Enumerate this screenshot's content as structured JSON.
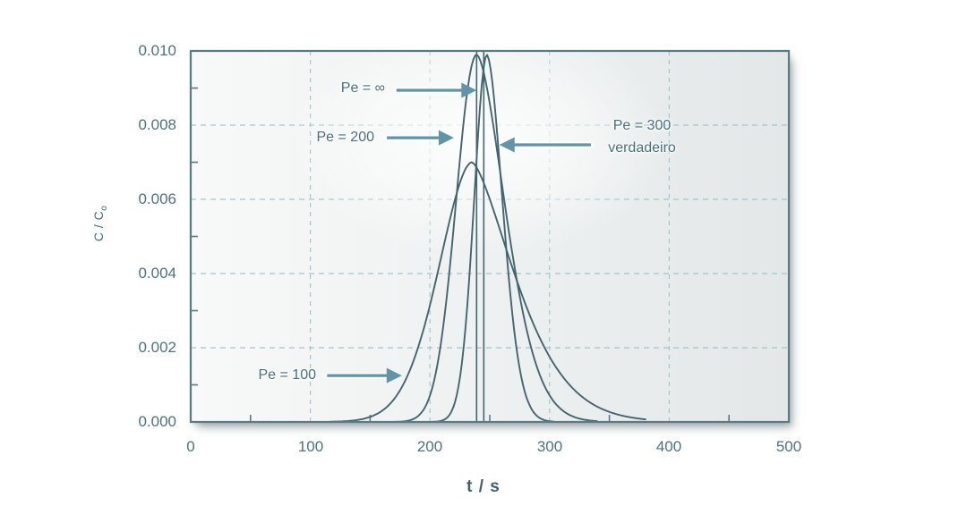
{
  "figure": {
    "x_axis_title": "t / s",
    "y_axis_title_main": "C / C",
    "y_axis_title_sub": "o"
  },
  "chart_data": {
    "type": "line",
    "title": "",
    "xlabel": "t / s",
    "ylabel": "C / Co",
    "xlim": [
      0,
      500
    ],
    "ylim": [
      0.0,
      0.01
    ],
    "grid": "dashed major gridlines, minor inward ticks",
    "legend_position": "none (arrow annotations inside plot)",
    "x_tick_labels": [
      "0",
      "100",
      "200",
      "300",
      "400",
      "500"
    ],
    "y_tick_labels": [
      "0.000",
      "0.002",
      "0.004",
      "0.006",
      "0.008",
      "0.010"
    ],
    "x_ticks_major": [
      0,
      100,
      200,
      300,
      400,
      500
    ],
    "x_ticks_minor": [
      50,
      150,
      250,
      350,
      450
    ],
    "y_ticks_major": [
      0.0,
      0.002,
      0.004,
      0.006,
      0.008,
      0.01
    ],
    "y_ticks_minor": [
      0.001,
      0.003,
      0.005,
      0.007,
      0.009
    ],
    "series": [
      {
        "name": "Pe = 100",
        "shape": "skewed-peak",
        "mode": 235,
        "peak": 0.007,
        "sigma_left": 27,
        "sigma_right": 33,
        "power_left": 1.8,
        "power_right": 1.5,
        "samples": [
          [
            140,
            0.0001
          ],
          [
            160,
            0.0003
          ],
          [
            180,
            0.0012
          ],
          [
            200,
            0.0032
          ],
          [
            220,
            0.0059
          ],
          [
            235,
            0.007
          ],
          [
            250,
            0.006
          ],
          [
            270,
            0.0041
          ],
          [
            290,
            0.0024
          ],
          [
            310,
            0.0013
          ],
          [
            330,
            0.0006
          ],
          [
            350,
            0.0003
          ],
          [
            360,
            0.0001
          ]
        ]
      },
      {
        "name": "Pe = 200",
        "shape": "skewed-peak",
        "mode": 239,
        "peak": 0.0099,
        "sigma_left": 17,
        "sigma_right": 23,
        "power_left": 2.0,
        "power_right": 1.7,
        "samples": [
          [
            180,
            0.0001
          ],
          [
            200,
            0.0007
          ],
          [
            220,
            0.0053
          ],
          [
            239,
            0.0099
          ],
          [
            260,
            0.0064
          ],
          [
            280,
            0.0026
          ],
          [
            300,
            0.0007
          ],
          [
            320,
            0.0001
          ]
        ]
      },
      {
        "name": "Pe = 300 (verdadeiro)",
        "shape": "skewed-peak",
        "mode": 247.5,
        "peak": 0.0099,
        "sigma_left": 10.5,
        "sigma_right": 13,
        "power_left": 1.9,
        "power_right": 1.8,
        "samples": [
          [
            215,
            0.0002
          ],
          [
            230,
            0.0026
          ],
          [
            240,
            0.0076
          ],
          [
            247.5,
            0.0099
          ],
          [
            260,
            0.0062
          ],
          [
            270,
            0.0026
          ],
          [
            280,
            0.0007
          ],
          [
            290,
            0.0002
          ]
        ]
      },
      {
        "name": "Pe = ∞",
        "shape": "impulse",
        "t_lines": [
          239,
          245
        ],
        "c_top": 0.01
      }
    ],
    "annotations": [
      {
        "label": "Pe = ∞",
        "arrow": {
          "from_t": 172.0,
          "to_t": 239.0,
          "c": 0.00894,
          "direction": "right"
        }
      },
      {
        "label": "Pe = 200",
        "arrow": {
          "from_t": 164.0,
          "to_t": 220.0,
          "c": 0.00766,
          "direction": "right"
        }
      },
      {
        "label": "Pe = 300",
        "label2": "verdadeiro",
        "arrow": {
          "from_t": 334.5,
          "to_t": 258.0,
          "c": 0.00747,
          "direction": "left"
        }
      },
      {
        "label": "Pe = 100",
        "arrow": {
          "from_t": 114.0,
          "to_t": 176.5,
          "c": 0.00125,
          "direction": "right"
        }
      }
    ],
    "colors": {
      "curve": "#44646f",
      "frame": "#5a7a86",
      "grid": "#a3c4cb",
      "arrow": "#6094a6",
      "text": "#4d7280",
      "plot_bg_left": "#f8f9f9",
      "plot_bg_right": "#e3e7e8"
    }
  }
}
